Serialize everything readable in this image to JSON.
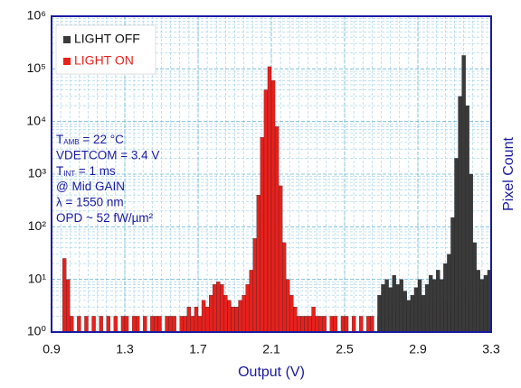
{
  "chart_data": {
    "type": "histogram",
    "xlabel": "Output (V)",
    "ylabel": "Pixel Count",
    "xlim": [
      0.9,
      3.3
    ],
    "xticks": [
      0.9,
      1.3,
      1.7,
      2.1,
      2.5,
      2.9,
      3.3
    ],
    "ylim": [
      1,
      1000000
    ],
    "yticks": [
      {
        "value": 1,
        "label": "10⁰"
      },
      {
        "value": 10,
        "label": "10¹"
      },
      {
        "value": 100,
        "label": "10²"
      },
      {
        "value": 1000,
        "label": "10³"
      },
      {
        "value": 10000,
        "label": "10⁴"
      },
      {
        "value": 100000,
        "label": "10⁵"
      },
      {
        "value": 1000000,
        "label": "10⁶"
      }
    ],
    "log_y": true,
    "grid": true,
    "legend": "upper left",
    "series": [
      {
        "name": "LIGHT OFF",
        "color": "#3a3a3a",
        "bins": [
          2.68,
          2.7,
          2.72,
          2.74,
          2.76,
          2.78,
          2.8,
          2.82,
          2.84,
          2.86,
          2.88,
          2.9,
          2.92,
          2.94,
          2.96,
          2.98,
          3.0,
          3.02,
          3.04,
          3.06,
          3.08,
          3.1,
          3.12,
          3.14,
          3.16,
          3.18,
          3.2,
          3.22,
          3.24,
          3.26,
          3.28,
          3.3
        ],
        "values": [
          5,
          8,
          10,
          7,
          12,
          8,
          10,
          6,
          4,
          5,
          7,
          10,
          5,
          8,
          12,
          10,
          15,
          10,
          20,
          30,
          150,
          2000,
          30000,
          180000,
          20000,
          1000,
          50,
          15,
          10,
          12,
          15
        ]
      },
      {
        "name": "LIGHT ON",
        "color": "#e8201c",
        "bins": [
          0.96,
          0.98,
          1.0,
          1.02,
          1.04,
          1.06,
          1.08,
          1.1,
          1.12,
          1.14,
          1.16,
          1.18,
          1.2,
          1.22,
          1.24,
          1.26,
          1.28,
          1.3,
          1.32,
          1.34,
          1.36,
          1.38,
          1.4,
          1.42,
          1.44,
          1.46,
          1.48,
          1.5,
          1.52,
          1.54,
          1.56,
          1.58,
          1.6,
          1.62,
          1.64,
          1.66,
          1.68,
          1.7,
          1.72,
          1.74,
          1.76,
          1.78,
          1.8,
          1.82,
          1.84,
          1.86,
          1.88,
          1.9,
          1.92,
          1.94,
          1.96,
          1.98,
          2.0,
          2.02,
          2.04,
          2.06,
          2.08,
          2.1,
          2.12,
          2.14,
          2.16,
          2.18,
          2.2,
          2.22,
          2.24,
          2.26,
          2.28,
          2.3,
          2.32,
          2.34,
          2.36,
          2.38,
          2.4,
          2.42,
          2.44,
          2.46,
          2.48,
          2.5,
          2.52,
          2.54,
          2.56,
          2.58,
          2.6,
          2.62,
          2.64,
          2.66,
          2.68,
          2.7,
          2.72,
          2.74,
          2.76,
          2.78,
          2.8,
          2.82,
          2.84,
          2.86,
          2.88,
          2.9,
          2.92,
          2.94,
          2.96,
          2.98,
          3.0,
          3.02,
          3.04,
          3.06,
          3.08,
          3.1,
          3.12,
          3.14,
          3.16,
          3.18,
          3.2,
          3.22,
          3.24,
          3.26,
          3.28,
          3.3
        ],
        "values": [
          25,
          10,
          2,
          0,
          2,
          0,
          2,
          0,
          2,
          0,
          2,
          0,
          2,
          0,
          2,
          0,
          2,
          2,
          0,
          2,
          2,
          0,
          2,
          0,
          2,
          2,
          2,
          0,
          2,
          2,
          2,
          0,
          2,
          2,
          3,
          2,
          3,
          2,
          4,
          3,
          5,
          8,
          9,
          8,
          5,
          4,
          3,
          3,
          4,
          5,
          8,
          15,
          60,
          400,
          5000,
          40000,
          110000,
          60000,
          8000,
          600,
          50,
          10,
          5,
          3,
          2,
          2,
          2,
          2,
          3,
          2,
          2,
          2,
          0,
          2,
          2,
          0,
          2,
          2,
          0,
          2,
          0,
          2,
          0,
          2,
          2,
          0,
          2,
          0,
          2,
          0,
          3,
          2,
          4,
          2,
          3,
          2,
          4,
          2,
          3,
          2,
          3,
          4,
          3,
          2,
          4,
          3,
          4,
          6,
          5,
          8,
          5,
          3,
          4,
          3,
          8,
          3,
          8
        ]
      }
    ],
    "annotations": [
      [
        {
          "text": "T"
        },
        {
          "text": "AMB",
          "sub": true
        },
        {
          "text": " = 22 °C"
        }
      ],
      [
        {
          "text": "VDETCOM = 3.4 V"
        }
      ],
      [
        {
          "text": "T"
        },
        {
          "text": "INT",
          "sub": true
        },
        {
          "text": " = 1 ms"
        }
      ],
      [
        {
          "text": "@ Mid GAIN"
        }
      ],
      [
        {
          "text": "λ = 1550 nm"
        }
      ],
      [
        {
          "text": "OPD ~ 52 fW/µm²"
        }
      ]
    ]
  }
}
